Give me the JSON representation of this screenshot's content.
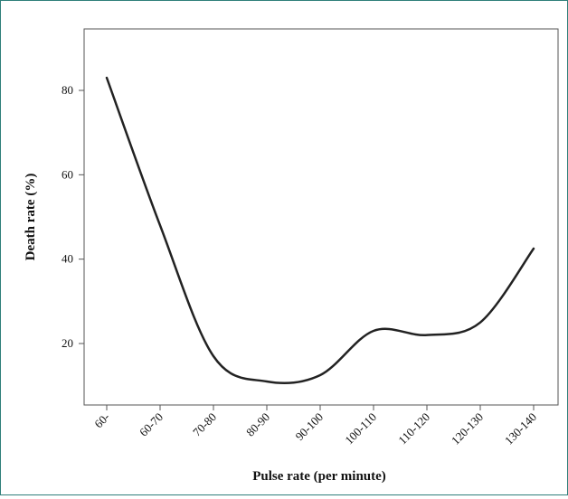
{
  "chart_data": {
    "type": "line",
    "title": "",
    "xlabel": "Pulse rate (per minute)",
    "ylabel": "Death rate (%)",
    "categories": [
      "60-",
      "60-70",
      "70-80",
      "80-90",
      "90-100",
      "100-110",
      "110-120",
      "120-130",
      "130-140"
    ],
    "values": [
      83,
      48,
      17,
      11,
      12.5,
      23,
      22,
      25,
      42.5
    ],
    "y_ticks": [
      20,
      40,
      60,
      80
    ],
    "ylim": [
      7,
      95
    ],
    "grid": false,
    "legend": "none",
    "colors": {
      "line": "#222222",
      "axis": "#555555",
      "frame_border": "#2f7f7a"
    }
  }
}
